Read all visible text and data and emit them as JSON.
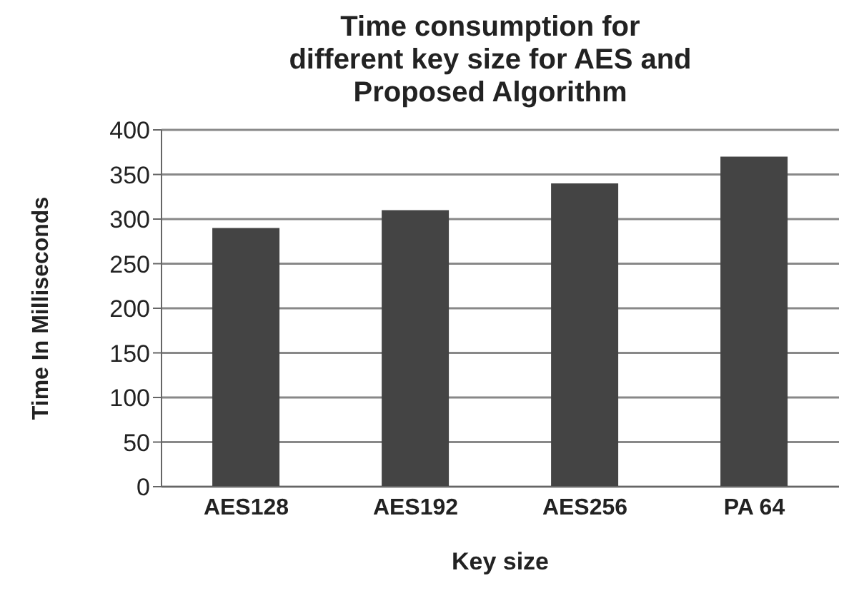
{
  "chart_data": {
    "type": "bar",
    "title": "Time consumption for different key size for AES and Proposed Algorithm",
    "xlabel": "Key size",
    "ylabel": "Time In Milliseconds",
    "categories": [
      "AES128",
      "AES192",
      "AES256",
      "PA 64"
    ],
    "values": [
      290,
      310,
      340,
      370
    ],
    "color": "#444444",
    "ylim": [
      0,
      400
    ],
    "yticks": [
      0,
      50,
      100,
      150,
      200,
      250,
      300,
      350,
      400
    ],
    "grid": "y"
  }
}
